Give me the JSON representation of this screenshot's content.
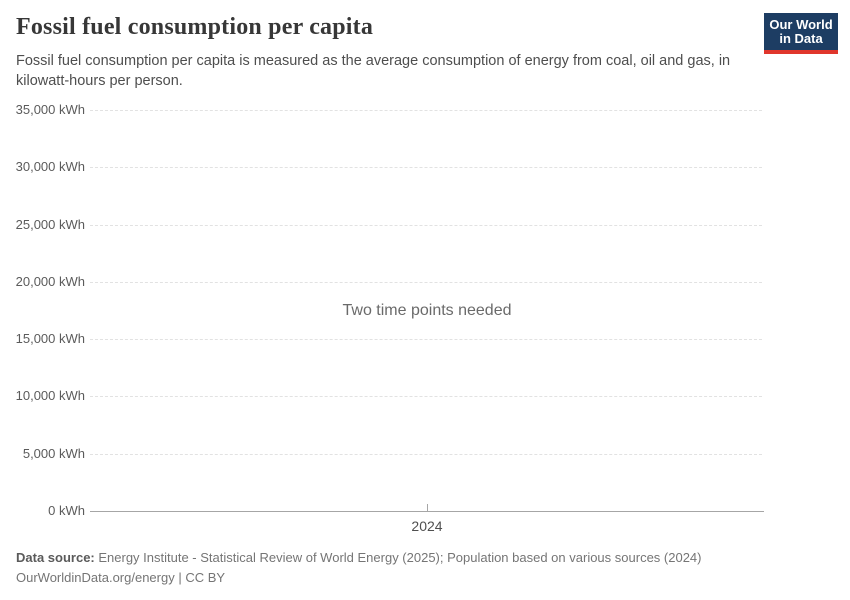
{
  "header": {
    "title": "Fossil fuel consumption per capita",
    "subtitle": "Fossil fuel consumption per capita is measured as the average consumption of energy from coal, oil and gas, in kilowatt-hours per person.",
    "logo": {
      "line1": "Our World",
      "line2": "in Data",
      "bg_color": "#1d3d63",
      "accent_color": "#e0362c"
    }
  },
  "chart_data": {
    "type": "line",
    "title": "Fossil fuel consumption per capita",
    "series": [],
    "empty_state_message": "Two time points needed",
    "ylabel": "kWh",
    "ylim": [
      0,
      35000
    ],
    "ytick_step": 5000,
    "yticks": [
      "35,000 kWh",
      "30,000 kWh",
      "25,000 kWh",
      "20,000 kWh",
      "15,000 kWh",
      "10,000 kWh",
      "5,000 kWh",
      "0 kWh"
    ],
    "xticks": [
      "2024"
    ],
    "grid": "horizontal dashed gridlines, no data plotted",
    "legend": "none"
  },
  "footer": {
    "datasource_label": "Data source:",
    "datasource_text": " Energy Institute - Statistical Review of World Energy (2025); Population based on various sources (2024)",
    "link_line": "OurWorldinData.org/energy | CC BY"
  }
}
